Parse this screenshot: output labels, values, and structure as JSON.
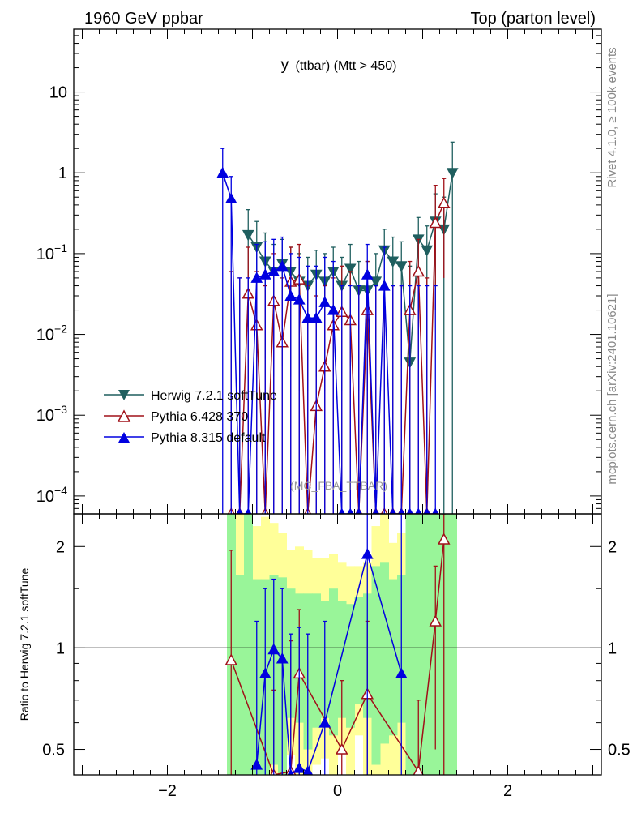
{
  "header": {
    "left": "1960 GeV ppbar",
    "right": "Top (parton level)"
  },
  "side_labels": {
    "rivet": "Rivet 4.1.0, ≥ 100k events",
    "mcplots": "mcplots.cern.ch [arXiv:2401.10621]"
  },
  "plot_title": {
    "main": "y",
    "sub": "(ttbar) (Mtt > 450)"
  },
  "analysis_label": "(MC_FBA_TTBAR)",
  "colors": {
    "herwig": "#1f5f5f",
    "pythia6": "#a01018",
    "pythia8": "#0000e0",
    "band_inner": "#99f599",
    "band_outer": "#ffff99"
  },
  "chart_data": [
    {
      "type": "line",
      "panel": "main",
      "title": "y (ttbar) (Mtt > 450)",
      "xlabel": "",
      "ylabel": "",
      "yscale": "log",
      "xlim": [
        -3.1,
        3.1
      ],
      "ylim": [
        6e-05,
        60
      ],
      "x_ticks": [
        -2,
        0,
        2
      ],
      "x_tick_labels": [
        "−2",
        "0",
        "2"
      ],
      "y_ticks": [
        10,
        1,
        0.1,
        0.01,
        0.001,
        0.0001
      ],
      "y_tick_labels": [
        {
          "base": "10",
          "exp": ""
        },
        {
          "base": "1",
          "exp": ""
        },
        {
          "base": "10",
          "exp": "−1"
        },
        {
          "base": "10",
          "exp": "−2"
        },
        {
          "base": "10",
          "exp": "−3"
        },
        {
          "base": "10",
          "exp": "−4"
        }
      ],
      "legend_position": "center-left",
      "series": [
        {
          "key": "herwig",
          "name": "Herwig 7.2.1 softTune",
          "marker": "triangle-down-filled",
          "x": [
            -1.05,
            -0.95,
            -0.85,
            -0.75,
            -0.65,
            -0.55,
            -0.45,
            -0.35,
            -0.25,
            -0.15,
            -0.05,
            0.05,
            0.15,
            0.25,
            0.35,
            0.45,
            0.55,
            0.65,
            0.75,
            0.85,
            0.95,
            1.05,
            1.15,
            1.25,
            1.35
          ],
          "y": [
            0.17,
            0.12,
            0.08,
            0.06,
            0.075,
            0.06,
            0.045,
            0.04,
            0.055,
            0.045,
            0.06,
            0.04,
            0.065,
            0.035,
            0.035,
            0.045,
            0.11,
            0.08,
            0.07,
            0.0045,
            0.15,
            0.11,
            0.25,
            0.2,
            1.0
          ],
          "err_hi": [
            0.35,
            0.25,
            0.18,
            0.13,
            0.15,
            0.12,
            0.1,
            0.09,
            0.11,
            0.1,
            0.12,
            0.09,
            0.13,
            0.08,
            0.08,
            0.1,
            0.2,
            0.16,
            0.14,
            0.07,
            0.28,
            0.22,
            0.55,
            0.5,
            2.4
          ],
          "err_lo": [
            0.02,
            0.01,
            0.005,
            0.003,
            0.004,
            0.003,
            0.002,
            0.002,
            0.003,
            0.002,
            0.003,
            0.002,
            0.004,
            0.002,
            0.002,
            0.003,
            0.008,
            0.005,
            0.004,
            6e-05,
            0.01,
            0.008,
            0.02,
            6e-05,
            6e-05
          ]
        },
        {
          "key": "pythia6",
          "name": "Pythia 6.428 370",
          "marker": "triangle-up-open",
          "x": [
            -1.25,
            -1.15,
            -1.05,
            -0.95,
            -0.85,
            -0.75,
            -0.65,
            -0.55,
            -0.45,
            -0.35,
            -0.25,
            -0.15,
            -0.05,
            0.05,
            0.15,
            0.25,
            0.35,
            0.45,
            0.55,
            0.65,
            0.75,
            0.85,
            0.95,
            1.05,
            1.15,
            1.25
          ],
          "y": [
            6e-05,
            6e-05,
            0.032,
            0.013,
            6e-05,
            0.026,
            0.008,
            0.045,
            0.048,
            6e-05,
            0.0013,
            0.004,
            0.013,
            0.019,
            0.015,
            6e-05,
            0.02,
            6e-05,
            6e-05,
            6e-05,
            6e-05,
            0.02,
            0.06,
            6e-05,
            0.24,
            0.42
          ],
          "err_hi": [
            0.06,
            0.05,
            0.12,
            0.06,
            0.04,
            0.1,
            0.05,
            0.12,
            0.13,
            0.04,
            0.03,
            0.04,
            0.05,
            0.07,
            0.06,
            0.04,
            0.08,
            0.04,
            0.04,
            0.04,
            0.04,
            0.08,
            0.15,
            0.05,
            0.7,
            0.85
          ],
          "err_lo": [
            6e-05,
            6e-05,
            6e-05,
            6e-05,
            6e-05,
            6e-05,
            6e-05,
            6e-05,
            6e-05,
            6e-05,
            6e-05,
            6e-05,
            6e-05,
            6e-05,
            6e-05,
            6e-05,
            6e-05,
            6e-05,
            6e-05,
            6e-05,
            6e-05,
            6e-05,
            6e-05,
            6e-05,
            0.02,
            0.05
          ]
        },
        {
          "key": "pythia8",
          "name": "Pythia 8.315 default",
          "marker": "triangle-up-filled",
          "x": [
            -1.35,
            -1.25,
            -1.15,
            -1.05,
            -0.95,
            -0.85,
            -0.75,
            -0.65,
            -0.55,
            -0.45,
            -0.35,
            -0.25,
            -0.15,
            -0.05,
            0.05,
            0.15,
            0.25,
            0.35,
            0.45,
            0.55,
            0.65,
            0.75,
            0.85,
            0.95,
            1.05,
            1.15
          ],
          "y": [
            1.0,
            0.48,
            6e-05,
            6e-05,
            0.05,
            0.055,
            0.06,
            0.07,
            0.03,
            0.027,
            0.016,
            0.016,
            0.025,
            0.02,
            6e-05,
            6e-05,
            6e-05,
            0.055,
            6e-05,
            0.04,
            6e-05,
            6e-05,
            6e-05,
            6e-05,
            6e-05,
            6e-05
          ],
          "err_hi": [
            2.0,
            0.9,
            0.05,
            0.05,
            0.13,
            0.14,
            0.15,
            0.16,
            0.1,
            0.09,
            0.07,
            0.07,
            0.09,
            0.08,
            0.04,
            0.04,
            0.04,
            0.13,
            0.04,
            0.12,
            0.04,
            0.04,
            0.04,
            0.04,
            0.04,
            0.04
          ],
          "err_lo": [
            6e-05,
            6e-05,
            6e-05,
            6e-05,
            6e-05,
            6e-05,
            6e-05,
            6e-05,
            6e-05,
            6e-05,
            6e-05,
            6e-05,
            6e-05,
            6e-05,
            6e-05,
            6e-05,
            6e-05,
            6e-05,
            6e-05,
            6e-05,
            6e-05,
            6e-05,
            6e-05,
            6e-05,
            6e-05,
            6e-05
          ]
        }
      ]
    },
    {
      "type": "line",
      "panel": "ratio",
      "xlabel": "",
      "ylabel": "Ratio to Herwig 7.2.1 softTune",
      "yscale": "log",
      "xlim": [
        -3.1,
        3.1
      ],
      "ylim": [
        0.42,
        2.5
      ],
      "y_ticks": [
        2,
        1,
        0.5
      ],
      "y_tick_labels": [
        "2",
        "1",
        "0.5"
      ],
      "reference_line": 1,
      "bands": {
        "edges": [
          -1.3,
          -1.2,
          -1.1,
          -1.0,
          -0.9,
          -0.8,
          -0.7,
          -0.6,
          -0.5,
          -0.4,
          -0.3,
          -0.2,
          -0.1,
          0.0,
          0.1,
          0.2,
          0.3,
          0.4,
          0.5,
          0.6,
          0.7,
          0.8,
          0.9,
          1.0,
          1.1,
          1.2,
          1.3,
          1.4
        ],
        "inner_lo": [
          0.42,
          0.42,
          0.42,
          0.42,
          0.42,
          0.45,
          0.42,
          0.62,
          0.6,
          0.5,
          0.58,
          0.62,
          0.55,
          0.62,
          0.58,
          0.68,
          0.62,
          0.45,
          0.52,
          0.55,
          0.6,
          0.42,
          0.42,
          0.42,
          0.42,
          0.42,
          0.42
        ],
        "inner_hi": [
          2.5,
          1.65,
          2.5,
          1.6,
          1.6,
          1.65,
          1.62,
          1.5,
          1.45,
          1.45,
          1.45,
          1.38,
          1.5,
          1.38,
          1.35,
          1.42,
          1.45,
          1.75,
          1.8,
          1.6,
          1.65,
          2.5,
          2.5,
          2.5,
          2.5,
          2.5,
          2.5
        ],
        "outer_lo": [
          0.42,
          0.42,
          0.42,
          0.42,
          0.42,
          0.42,
          0.42,
          0.48,
          0.42,
          0.42,
          0.45,
          0.47,
          0.42,
          0.5,
          0.42,
          0.55,
          0.42,
          0.42,
          0.42,
          0.42,
          0.42,
          0.42,
          0.42,
          0.42,
          0.42,
          0.42,
          0.42
        ],
        "outer_hi": [
          2.5,
          2.5,
          2.5,
          2.3,
          2.45,
          2.35,
          2.2,
          1.95,
          2.0,
          1.95,
          1.85,
          1.85,
          1.9,
          1.8,
          1.75,
          1.75,
          1.8,
          2.3,
          2.5,
          2.05,
          2.2,
          2.5,
          2.5,
          2.5,
          2.5,
          2.5,
          2.5
        ]
      },
      "series": [
        {
          "key": "pythia6",
          "name": "Pythia 6.428 370",
          "marker": "triangle-up-open",
          "x": [
            -1.25,
            -0.75,
            -0.55,
            -0.45,
            0.05,
            0.35,
            0.95,
            1.15,
            1.25
          ],
          "y": [
            0.92,
            0.42,
            0.43,
            0.84,
            0.5,
            0.73,
            0.43,
            1.2,
            2.1
          ],
          "err_hi": [
            1.95,
            0.75,
            1.05,
            1.3,
            0.8,
            1.2,
            0.7,
            1.75,
            2.5
          ],
          "err_lo": [
            0.42,
            0.42,
            0.42,
            0.42,
            0.42,
            0.42,
            0.42,
            0.5,
            0.42
          ]
        },
        {
          "key": "pythia8",
          "name": "Pythia 8.315 default",
          "marker": "triangle-up-filled",
          "x": [
            -0.95,
            -0.85,
            -0.75,
            -0.65,
            -0.55,
            -0.45,
            -0.35,
            -0.15,
            0.35,
            0.75
          ],
          "y": [
            0.45,
            0.84,
            0.99,
            0.93,
            0.42,
            0.44,
            0.43,
            0.6,
            1.9,
            0.84
          ],
          "err_hi": [
            1.2,
            1.5,
            1.6,
            1.5,
            1.1,
            1.15,
            1.1,
            1.2,
            2.5,
            2.5
          ],
          "err_lo": [
            0.42,
            0.42,
            0.42,
            0.42,
            0.42,
            0.42,
            0.42,
            0.42,
            0.42,
            0.42
          ]
        }
      ]
    }
  ]
}
